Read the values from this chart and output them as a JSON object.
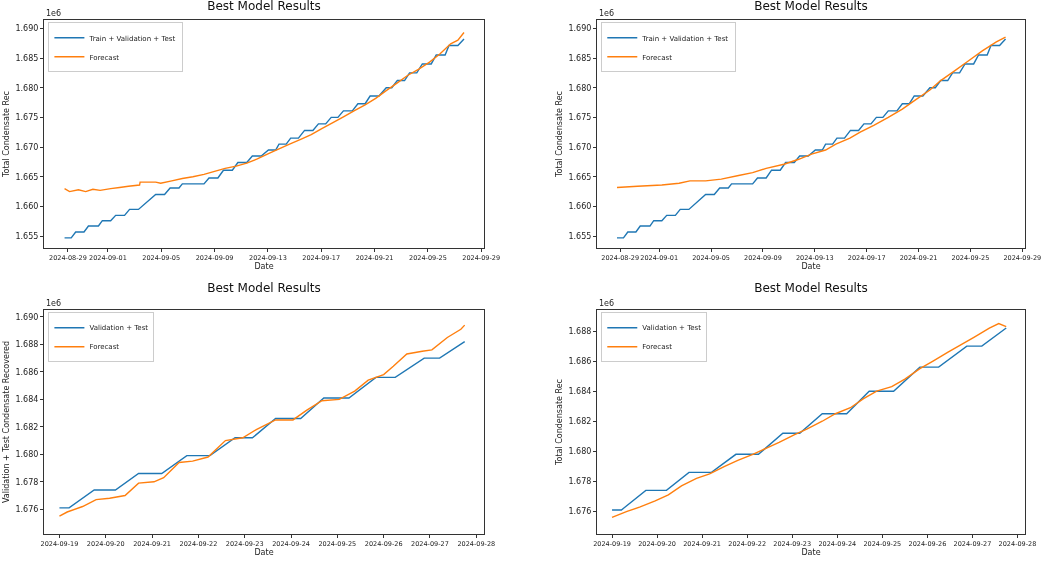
{
  "chart_data": [
    {
      "type": "line",
      "title": "Best Model Results",
      "xlabel": "Date",
      "ylabel": "Total Condensate Rec",
      "annotations": [
        "1e6"
      ],
      "legend": "top left",
      "grid": false,
      "xlim": [
        "2024-08-27T05:00",
        "2024-09-29T05:00"
      ],
      "xticks": [
        "2024-08-29",
        "2024-09-01",
        "2024-09-05",
        "2024-09-09",
        "2024-09-13",
        "2024-09-17",
        "2024-09-21",
        "2024-09-25",
        "2024-09-29"
      ],
      "ylim": [
        1.653,
        1.6914
      ],
      "yticks": [
        1.655,
        {
          "value": 1.66,
          "label": "1.660"
        },
        1.665,
        {
          "value": 1.67,
          "label": "1.670"
        },
        1.675,
        {
          "value": 1.68,
          "label": "1.680"
        },
        1.685,
        {
          "value": 1.69,
          "label": "1.690"
        }
      ],
      "series": [
        {
          "name": "Train + Validation + Test",
          "color": "#1f77b4",
          "x": [
            "2024-08-28T18:00",
            "2024-08-29T06:00",
            "2024-08-29T14:00",
            "2024-08-30T05:00",
            "2024-08-30T13:00",
            "2024-08-31T07:00",
            "2024-08-31T14:00",
            "2024-09-01T05:00",
            "2024-09-01T14:00",
            "2024-09-02T06:00",
            "2024-09-02T15:00",
            "2024-09-03T07:00",
            "2024-09-04T14:00",
            "2024-09-05T06:00",
            "2024-09-05T16:00",
            "2024-09-06T08:00",
            "2024-09-06T14:00",
            "2024-09-08T05:00",
            "2024-09-08T14:00",
            "2024-09-09T06:00",
            "2024-09-09T16:00",
            "2024-09-10T08:00",
            "2024-09-10T18:00",
            "2024-09-11T10:00",
            "2024-09-11T20:00",
            "2024-09-12T12:00",
            "2024-09-13T01:00",
            "2024-09-13T14:00",
            "2024-09-13T20:00",
            "2024-09-14T09:00",
            "2024-09-14T17:00",
            "2024-09-15T07:00",
            "2024-09-15T18:00",
            "2024-09-16T09:00",
            "2024-09-16T19:00",
            "2024-09-17T08:00",
            "2024-09-17T18:00",
            "2024-09-18T06:00",
            "2024-09-18T16:00",
            "2024-09-19T08:00",
            "2024-09-19T18:00",
            "2024-09-20T07:00",
            "2024-09-20T16:00",
            "2024-09-21T08:00",
            "2024-09-21T21:00",
            "2024-09-22T07:00",
            "2024-09-22T17:00",
            "2024-09-23T06:00",
            "2024-09-23T15:00",
            "2024-09-24T04:00",
            "2024-09-24T14:00",
            "2024-09-25T06:00",
            "2024-09-25T15:00",
            "2024-09-26T07:00",
            "2024-09-26T14:00",
            "2024-09-27T06:00",
            "2024-09-27T17:00"
          ],
          "values": [
            1.6547,
            1.6547,
            1.6557,
            1.6557,
            1.6567,
            1.6567,
            1.6576,
            1.6576,
            1.6585,
            1.6585,
            1.6595,
            1.6595,
            1.662,
            1.662,
            1.6631,
            1.6631,
            1.6638,
            1.6638,
            1.6648,
            1.6648,
            1.6661,
            1.6661,
            1.6674,
            1.6674,
            1.6685,
            1.6685,
            1.6695,
            1.6695,
            1.6705,
            1.6705,
            1.6715,
            1.6715,
            1.6728,
            1.6728,
            1.6739,
            1.6739,
            1.675,
            1.675,
            1.6761,
            1.6761,
            1.6773,
            1.6773,
            1.6786,
            1.6786,
            1.68,
            1.68,
            1.6812,
            1.6812,
            1.6825,
            1.6825,
            1.684,
            1.684,
            1.6855,
            1.6855,
            1.6871,
            1.6871,
            1.6882
          ]
        },
        {
          "name": "Forecast",
          "color": "#ff7f0e",
          "x": [
            "2024-08-28T18:00",
            "2024-08-29T03:00",
            "2024-08-29T19:00",
            "2024-08-30T08:00",
            "2024-08-30T21:00",
            "2024-08-31T10:00",
            "2024-09-01T05:00",
            "2024-09-01T21:00",
            "2024-09-02T13:00",
            "2024-09-03T09:00",
            "2024-09-03T10:00",
            "2024-09-04T14:00",
            "2024-09-04T23:00",
            "2024-09-05T19:00",
            "2024-09-06T14:00",
            "2024-09-07T09:00",
            "2024-09-08T05:00",
            "2024-09-09T00:00",
            "2024-09-09T19:00",
            "2024-09-10T15:00",
            "2024-09-11T10:00",
            "2024-09-12T05:00",
            "2024-09-13T01:00",
            "2024-09-13T20:00",
            "2024-09-14T15:00",
            "2024-09-15T11:00",
            "2024-09-16T06:00",
            "2024-09-17T01:00",
            "2024-09-17T21:00",
            "2024-09-18T16:00",
            "2024-09-19T11:00",
            "2024-09-20T07:00",
            "2024-09-21T02:00",
            "2024-09-21T21:00",
            "2024-09-22T17:00",
            "2024-09-23T12:00",
            "2024-09-24T07:00",
            "2024-09-25T03:00",
            "2024-09-25T22:00",
            "2024-09-26T17:00",
            "2024-09-27T06:00",
            "2024-09-27T17:00"
          ],
          "values": [
            1.663,
            1.6625,
            1.6628,
            1.6625,
            1.6629,
            1.6627,
            1.663,
            1.6632,
            1.6634,
            1.6636,
            1.6641,
            1.6641,
            1.6639,
            1.6643,
            1.6647,
            1.665,
            1.6654,
            1.6659,
            1.6664,
            1.6668,
            1.6673,
            1.668,
            1.6689,
            1.6697,
            1.6705,
            1.6713,
            1.6721,
            1.6731,
            1.6741,
            1.6751,
            1.6761,
            1.6771,
            1.6782,
            1.6795,
            1.6808,
            1.6821,
            1.6831,
            1.6843,
            1.6857,
            1.6874,
            1.688,
            1.6893
          ]
        }
      ]
    },
    {
      "type": "line",
      "title": "Best Model Results",
      "xlabel": "Date",
      "ylabel": "Total Condensate Rec",
      "annotations": [
        "1e6"
      ],
      "legend": "top left",
      "grid": false,
      "xlim": [
        "2024-08-27T05:00",
        "2024-09-29T05:00"
      ],
      "xticks": [
        "2024-08-29",
        "2024-09-01",
        "2024-09-05",
        "2024-09-09",
        "2024-09-13",
        "2024-09-17",
        "2024-09-21",
        "2024-09-25",
        "2024-09-29"
      ],
      "ylim": [
        1.653,
        1.6914
      ],
      "yticks": [
        1.655,
        {
          "value": 1.66,
          "label": "1.660"
        },
        1.665,
        {
          "value": 1.67,
          "label": "1.670"
        },
        1.675,
        {
          "value": 1.68,
          "label": "1.680"
        },
        1.685,
        {
          "value": 1.69,
          "label": "1.690"
        }
      ],
      "series": [
        {
          "name": "Train + Validation + Test",
          "color": "#1f77b4",
          "x": [
            "2024-08-28T18:00",
            "2024-08-29T06:00",
            "2024-08-29T14:00",
            "2024-08-30T05:00",
            "2024-08-30T13:00",
            "2024-08-31T07:00",
            "2024-08-31T14:00",
            "2024-09-01T05:00",
            "2024-09-01T14:00",
            "2024-09-02T06:00",
            "2024-09-02T15:00",
            "2024-09-03T07:00",
            "2024-09-04T14:00",
            "2024-09-05T06:00",
            "2024-09-05T16:00",
            "2024-09-06T08:00",
            "2024-09-06T14:00",
            "2024-09-08T05:00",
            "2024-09-08T14:00",
            "2024-09-09T06:00",
            "2024-09-09T16:00",
            "2024-09-10T08:00",
            "2024-09-10T18:00",
            "2024-09-11T10:00",
            "2024-09-11T20:00",
            "2024-09-12T12:00",
            "2024-09-13T01:00",
            "2024-09-13T14:00",
            "2024-09-13T20:00",
            "2024-09-14T09:00",
            "2024-09-14T17:00",
            "2024-09-15T07:00",
            "2024-09-15T18:00",
            "2024-09-16T09:00",
            "2024-09-16T19:00",
            "2024-09-17T08:00",
            "2024-09-17T18:00",
            "2024-09-18T06:00",
            "2024-09-18T16:00",
            "2024-09-19T08:00",
            "2024-09-19T18:00",
            "2024-09-20T07:00",
            "2024-09-20T16:00",
            "2024-09-21T08:00",
            "2024-09-21T21:00",
            "2024-09-22T07:00",
            "2024-09-22T17:00",
            "2024-09-23T06:00",
            "2024-09-23T15:00",
            "2024-09-24T04:00",
            "2024-09-24T14:00",
            "2024-09-25T06:00",
            "2024-09-25T15:00",
            "2024-09-26T07:00",
            "2024-09-26T14:00",
            "2024-09-27T06:00",
            "2024-09-27T17:00"
          ],
          "values": [
            1.6547,
            1.6547,
            1.6557,
            1.6557,
            1.6567,
            1.6567,
            1.6576,
            1.6576,
            1.6585,
            1.6585,
            1.6595,
            1.6595,
            1.662,
            1.662,
            1.6631,
            1.6631,
            1.6638,
            1.6638,
            1.6648,
            1.6648,
            1.6661,
            1.6661,
            1.6674,
            1.6674,
            1.6685,
            1.6685,
            1.6695,
            1.6695,
            1.6705,
            1.6705,
            1.6715,
            1.6715,
            1.6728,
            1.6728,
            1.6739,
            1.6739,
            1.675,
            1.675,
            1.6761,
            1.6761,
            1.6773,
            1.6773,
            1.6786,
            1.6786,
            1.68,
            1.68,
            1.6812,
            1.6812,
            1.6825,
            1.6825,
            1.684,
            1.684,
            1.6855,
            1.6855,
            1.6871,
            1.6871,
            1.6882
          ]
        },
        {
          "name": "Forecast",
          "color": "#ff7f0e",
          "x": [
            "2024-08-28T18:00",
            "2024-08-30T08:00",
            "2024-09-01T05:00",
            "2024-09-02T13:00",
            "2024-09-03T09:00",
            "2024-09-04T14:00",
            "2024-09-05T19:00",
            "2024-09-07T03:00",
            "2024-09-08T05:00",
            "2024-09-09T06:00",
            "2024-09-10T15:00",
            "2024-09-11T17:00",
            "2024-09-12T18:00",
            "2024-09-13T20:00",
            "2024-09-14T15:00",
            "2024-09-15T17:00",
            "2024-09-16T12:00",
            "2024-09-17T14:00",
            "2024-09-18T16:00",
            "2024-09-19T18:00",
            "2024-09-20T19:00",
            "2024-09-21T21:00",
            "2024-09-22T17:00",
            "2024-09-23T18:00",
            "2024-09-24T20:00",
            "2024-09-25T22:00",
            "2024-09-27T00:00",
            "2024-09-27T17:00"
          ],
          "values": [
            1.6632,
            1.6634,
            1.6636,
            1.6639,
            1.6643,
            1.6643,
            1.6646,
            1.6652,
            1.6657,
            1.6664,
            1.6671,
            1.6679,
            1.6688,
            1.6695,
            1.6705,
            1.6715,
            1.6725,
            1.6737,
            1.675,
            1.6764,
            1.678,
            1.6796,
            1.6812,
            1.6828,
            1.6845,
            1.6862,
            1.6877,
            1.6885
          ]
        }
      ]
    },
    {
      "type": "line",
      "title": "Best Model Results",
      "xlabel": "Date",
      "ylabel": "Validation + Test Condensate Recovered",
      "annotations": [
        "1e6"
      ],
      "legend": "top left",
      "grid": false,
      "xlim": [
        "2024-09-18T16:00",
        "2024-09-28T04:00"
      ],
      "xticks": [
        "2024-09-19",
        "2024-09-20",
        "2024-09-21",
        "2024-09-22",
        "2024-09-23",
        "2024-09-24",
        "2024-09-25",
        "2024-09-26",
        "2024-09-27",
        "2024-09-28"
      ],
      "ylim": [
        1.6742,
        1.6905
      ],
      "yticks": [
        1.676,
        1.678,
        {
          "value": 1.68,
          "label": "1.680"
        },
        1.682,
        1.684,
        1.686,
        1.688,
        {
          "value": 1.69,
          "label": "1.690"
        }
      ],
      "series": [
        {
          "name": "Validation + Test",
          "color": "#1f77b4",
          "x": [
            "2024-09-19T00:00",
            "2024-09-19T05:00",
            "2024-09-19T18:00",
            "2024-09-20T05:00",
            "2024-09-20T17:00",
            "2024-09-21T05:00",
            "2024-09-21T18:00",
            "2024-09-22T06:00",
            "2024-09-22T19:00",
            "2024-09-23T04:00",
            "2024-09-23T16:00",
            "2024-09-24T05:00",
            "2024-09-24T17:00",
            "2024-09-25T06:00",
            "2024-09-25T20:00",
            "2024-09-26T06:00",
            "2024-09-26T21:00",
            "2024-09-27T05:00",
            "2024-09-27T18:00"
          ],
          "values": [
            1.6761,
            1.6761,
            1.6774,
            1.6774,
            1.6786,
            1.6786,
            1.6799,
            1.6799,
            1.6812,
            1.6812,
            1.6826,
            1.6826,
            1.6841,
            1.6841,
            1.6856,
            1.6856,
            1.687,
            1.687,
            1.6882
          ]
        },
        {
          "name": "Forecast",
          "color": "#ff7f0e",
          "x": [
            "2024-09-19T00:00",
            "2024-09-19T04:00",
            "2024-09-19T12:00",
            "2024-09-19T19:00",
            "2024-09-20T02:00",
            "2024-09-20T10:00",
            "2024-09-20T17:00",
            "2024-09-21T01:00",
            "2024-09-21T06:00",
            "2024-09-21T14:00",
            "2024-09-21T21:00",
            "2024-09-22T05:00",
            "2024-09-22T14:00",
            "2024-09-22T23:00",
            "2024-09-23T06:00",
            "2024-09-23T16:00",
            "2024-09-24T01:00",
            "2024-09-24T08:00",
            "2024-09-24T16:00",
            "2024-09-25T01:00",
            "2024-09-25T09:00",
            "2024-09-25T16:00",
            "2024-09-26T00:00",
            "2024-09-26T05:00",
            "2024-09-26T12:00",
            "2024-09-26T20:00",
            "2024-09-27T01:00",
            "2024-09-27T09:00",
            "2024-09-27T16:00",
            "2024-09-27T18:00"
          ],
          "values": [
            1.6755,
            1.6758,
            1.6762,
            1.6767,
            1.6768,
            1.677,
            1.6779,
            1.678,
            1.6783,
            1.6794,
            1.6795,
            1.6798,
            1.681,
            1.6812,
            1.6818,
            1.6825,
            1.6825,
            1.6832,
            1.6839,
            1.684,
            1.6846,
            1.6854,
            1.6858,
            1.6864,
            1.6873,
            1.6875,
            1.6876,
            1.6885,
            1.6891,
            1.6894
          ]
        }
      ]
    },
    {
      "type": "line",
      "title": "Best Model Results",
      "xlabel": "Date",
      "ylabel": "Total Condensate Rec",
      "annotations": [
        "1e6"
      ],
      "legend": "top left",
      "grid": false,
      "xlim": [
        "2024-09-18T16:00",
        "2024-09-28T04:00"
      ],
      "xticks": [
        "2024-09-19",
        "2024-09-20",
        "2024-09-21",
        "2024-09-22",
        "2024-09-23",
        "2024-09-24",
        "2024-09-25",
        "2024-09-26",
        "2024-09-27",
        "2024-09-28"
      ],
      "ylim": [
        1.6745,
        1.6894
      ],
      "yticks": [
        1.676,
        1.678,
        {
          "value": 1.68,
          "label": "1.680"
        },
        1.682,
        1.684,
        1.686,
        1.688
      ],
      "series": [
        {
          "name": "Validation + Test",
          "color": "#1f77b4",
          "x": [
            "2024-09-19T00:00",
            "2024-09-19T05:00",
            "2024-09-19T18:00",
            "2024-09-20T05:00",
            "2024-09-20T17:00",
            "2024-09-21T05:00",
            "2024-09-21T18:00",
            "2024-09-22T06:00",
            "2024-09-22T19:00",
            "2024-09-23T04:00",
            "2024-09-23T16:00",
            "2024-09-24T05:00",
            "2024-09-24T17:00",
            "2024-09-25T06:00",
            "2024-09-25T20:00",
            "2024-09-26T06:00",
            "2024-09-26T21:00",
            "2024-09-27T05:00",
            "2024-09-27T18:00"
          ],
          "values": [
            1.6761,
            1.6761,
            1.6774,
            1.6774,
            1.6786,
            1.6786,
            1.6798,
            1.6798,
            1.6812,
            1.6812,
            1.6825,
            1.6825,
            1.684,
            1.684,
            1.6856,
            1.6856,
            1.687,
            1.687,
            1.6882
          ]
        },
        {
          "name": "Forecast",
          "color": "#ff7f0e",
          "x": [
            "2024-09-19T00:00",
            "2024-09-19T08:00",
            "2024-09-19T15:00",
            "2024-09-19T23:00",
            "2024-09-20T06:00",
            "2024-09-20T13:00",
            "2024-09-20T21:00",
            "2024-09-21T04:00",
            "2024-09-21T12:00",
            "2024-09-21T19:00",
            "2024-09-22T03:00",
            "2024-09-22T10:00",
            "2024-09-22T17:00",
            "2024-09-23T01:00",
            "2024-09-23T08:00",
            "2024-09-23T16:00",
            "2024-09-23T23:00",
            "2024-09-24T07:00",
            "2024-09-24T14:00",
            "2024-09-24T21:00",
            "2024-09-25T05:00",
            "2024-09-25T12:00",
            "2024-09-25T20:00",
            "2024-09-26T03:00",
            "2024-09-26T11:00",
            "2024-09-26T18:00",
            "2024-09-27T01:00",
            "2024-09-27T09:00",
            "2024-09-27T14:00",
            "2024-09-27T18:00"
          ],
          "values": [
            1.6756,
            1.676,
            1.6763,
            1.6767,
            1.6771,
            1.6777,
            1.6782,
            1.6785,
            1.679,
            1.6794,
            1.6798,
            1.6802,
            1.6806,
            1.6811,
            1.6815,
            1.682,
            1.6825,
            1.6829,
            1.6835,
            1.684,
            1.6843,
            1.6848,
            1.6855,
            1.686,
            1.6866,
            1.6871,
            1.6876,
            1.6882,
            1.6885,
            1.6883
          ]
        }
      ]
    }
  ]
}
